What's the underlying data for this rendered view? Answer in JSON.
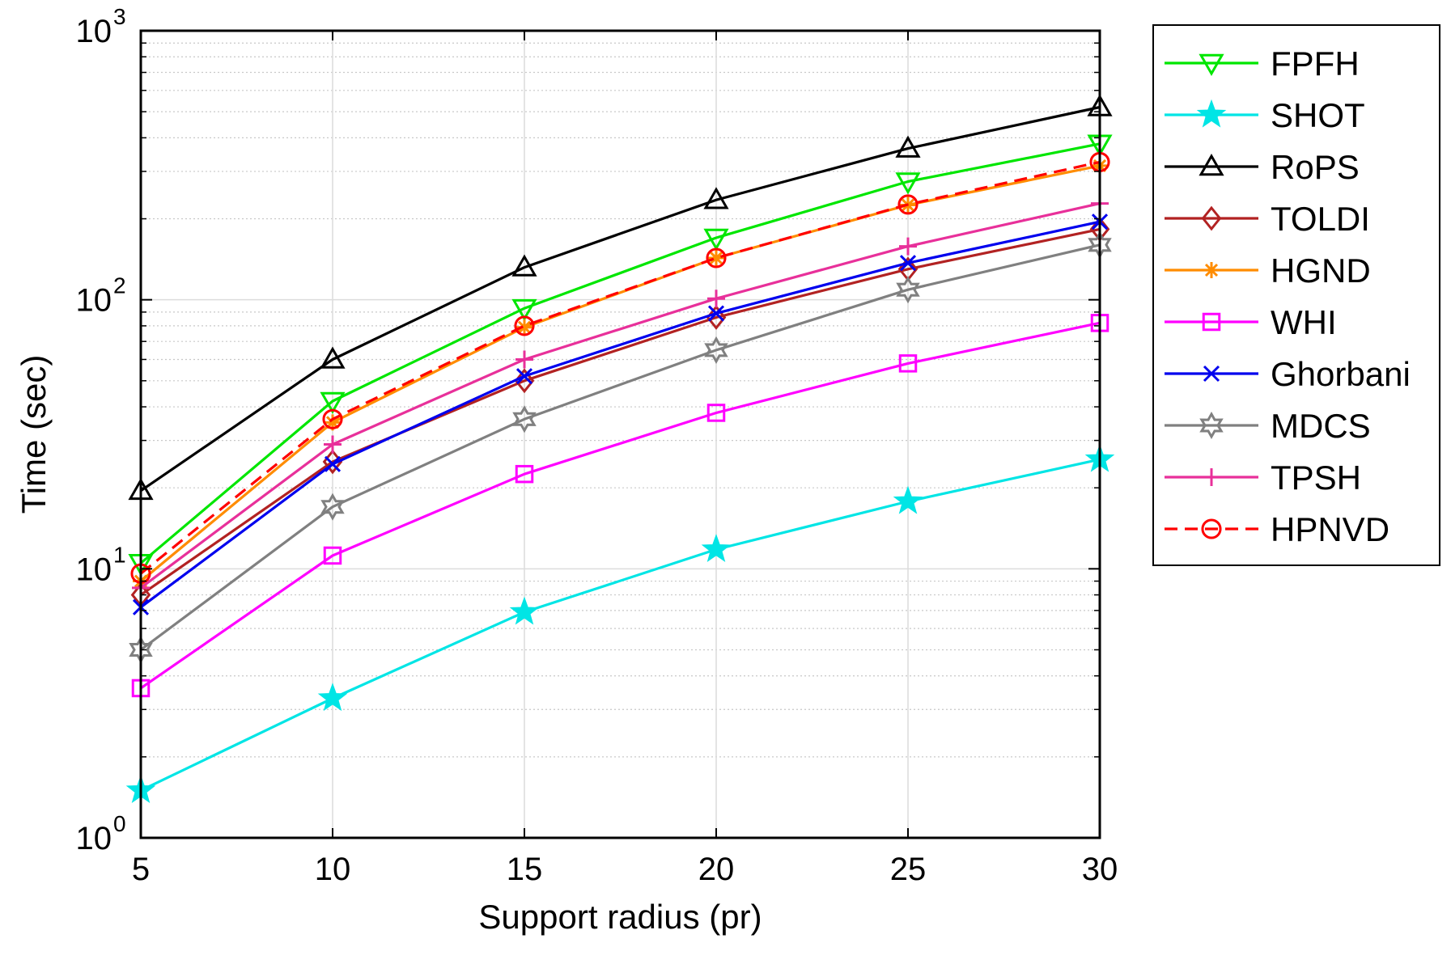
{
  "chart_data": {
    "type": "line",
    "title": "",
    "xlabel": "Support radius (pr)",
    "ylabel": "Time (sec)",
    "xlim": [
      5,
      30
    ],
    "ylim": [
      1,
      1000
    ],
    "yscale": "log",
    "grid": true,
    "legend_position": "outside-right",
    "x": [
      5,
      10,
      15,
      20,
      25,
      30
    ],
    "xticks": [
      "5",
      "10",
      "15",
      "20",
      "25",
      "30"
    ],
    "yticks": [
      {
        "value": 1,
        "base": "10",
        "exp": "0"
      },
      {
        "value": 10,
        "base": "10",
        "exp": "1"
      },
      {
        "value": 100,
        "base": "10",
        "exp": "2"
      },
      {
        "value": 1000,
        "base": "10",
        "exp": "3"
      }
    ],
    "series": [
      {
        "name": "FPFH",
        "color": "#00e600",
        "marker": "triangle-down",
        "dash": false,
        "values": [
          10.5,
          42,
          93,
          170,
          275,
          380
        ]
      },
      {
        "name": "SHOT",
        "color": "#00e5e5",
        "marker": "star",
        "dash": false,
        "values": [
          1.5,
          3.3,
          6.9,
          11.8,
          17.8,
          25.5
        ]
      },
      {
        "name": "RoPS",
        "color": "#000000",
        "marker": "triangle-up",
        "dash": false,
        "values": [
          19.5,
          60,
          132,
          235,
          365,
          520
        ]
      },
      {
        "name": "TOLDI",
        "color": "#b22222",
        "marker": "diamond",
        "dash": false,
        "values": [
          8.0,
          25,
          50,
          86,
          130,
          183
        ]
      },
      {
        "name": "HGND",
        "color": "#ff8c00",
        "marker": "asterisk",
        "dash": false,
        "values": [
          9.0,
          35,
          79,
          143,
          225,
          315
        ]
      },
      {
        "name": "WHI",
        "color": "#ff00ff",
        "marker": "square",
        "dash": false,
        "values": [
          3.6,
          11.2,
          22.5,
          38,
          58,
          82
        ]
      },
      {
        "name": "Ghorbani",
        "color": "#0000ee",
        "marker": "x",
        "dash": false,
        "values": [
          7.2,
          24.5,
          52,
          89,
          137,
          195
        ]
      },
      {
        "name": "MDCS",
        "color": "#808080",
        "marker": "hexagram",
        "dash": false,
        "values": [
          5.0,
          17.0,
          36,
          65,
          109,
          160
        ]
      },
      {
        "name": "TPSH",
        "color": "#e8309a",
        "marker": "plus",
        "dash": false,
        "values": [
          8.5,
          29,
          60,
          101,
          158,
          228
        ]
      },
      {
        "name": "HPNVD",
        "color": "#ff0000",
        "marker": "circle",
        "dash": true,
        "values": [
          9.6,
          36,
          80,
          143,
          226,
          325
        ]
      }
    ]
  }
}
